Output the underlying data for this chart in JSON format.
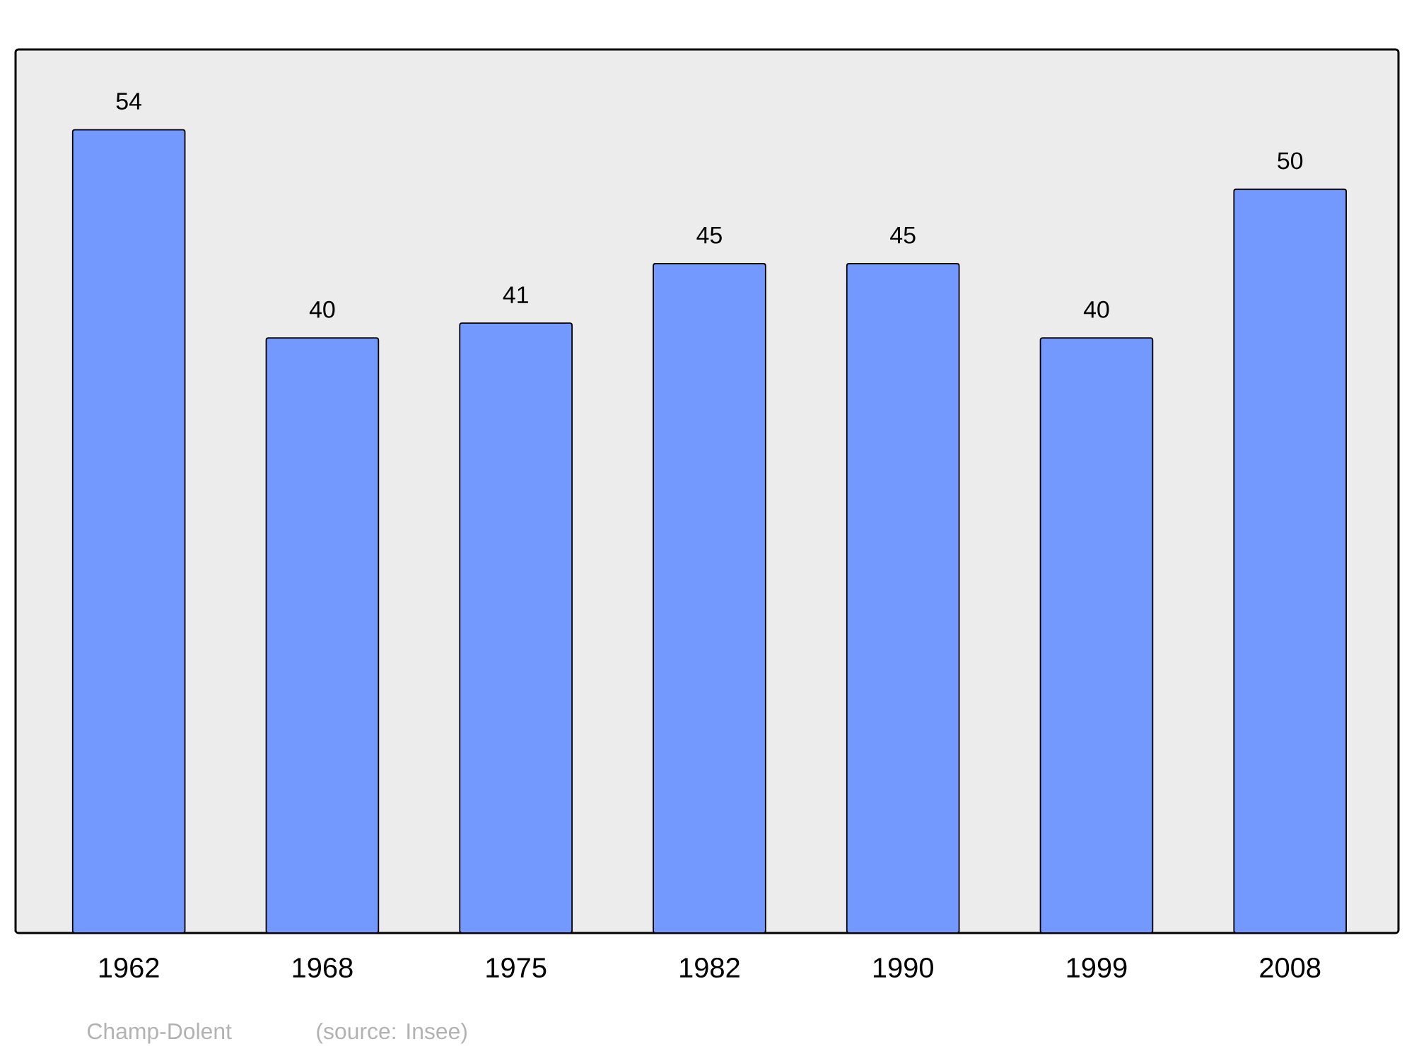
{
  "chart_data": {
    "type": "bar",
    "categories": [
      "1962",
      "1968",
      "1975",
      "1982",
      "1990",
      "1999",
      "2008"
    ],
    "values": [
      54,
      40,
      41,
      45,
      45,
      40,
      50
    ],
    "color": "#7399ff",
    "ylim": [
      0,
      59.4
    ],
    "data_labels": true,
    "annotations": [
      "Champ-Dolent",
      "(source: Insee)"
    ]
  }
}
